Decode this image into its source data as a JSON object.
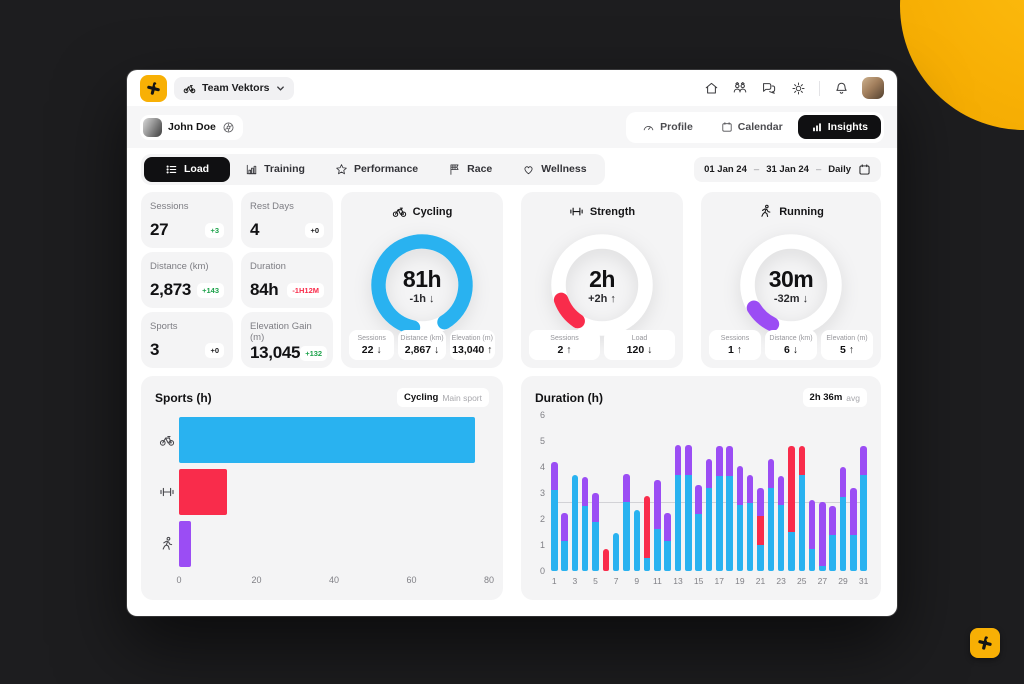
{
  "colors": {
    "accent_yellow": "#f8b005",
    "cycling_blue": "#29b2f0",
    "strength_red": "#f92c4b",
    "running_purple": "#9b4df4",
    "positive_green": "#1ca24a",
    "negative_red": "#f92c4b",
    "neutral_dark": "#1a1a1c"
  },
  "titlebar": {
    "team_selector": {
      "label": "Team Vektors"
    },
    "nav_icons": [
      "home-icon",
      "team-icon",
      "chat-icon",
      "settings-icon",
      "notifications-icon"
    ]
  },
  "profile_row": {
    "athlete_name": "John Doe",
    "tabs": [
      {
        "label": "Profile"
      },
      {
        "label": "Calendar"
      },
      {
        "label": "Insights"
      }
    ],
    "active_tab": "Insights"
  },
  "filter_row": {
    "tabs": [
      {
        "label": "Load"
      },
      {
        "label": "Training"
      },
      {
        "label": "Performance"
      },
      {
        "label": "Race"
      },
      {
        "label": "Wellness"
      }
    ],
    "active_tab": "Load",
    "date_range": {
      "start": "01 Jan 24",
      "sep": "–",
      "end": "31 Jan 24",
      "mode": "Daily"
    }
  },
  "stats": [
    {
      "label": "Sessions",
      "value": "27",
      "delta": "+3",
      "delta_color": "#1ca24a"
    },
    {
      "label": "Rest Days",
      "value": "4",
      "delta": "+0",
      "delta_color": "#1a1a1c"
    },
    {
      "label": "Distance (km)",
      "value": "2,873",
      "delta": "+143",
      "delta_color": "#1ca24a"
    },
    {
      "label": "Duration",
      "value": "84h",
      "delta": "-1H12M",
      "delta_color": "#f92c4b"
    },
    {
      "label": "Sports",
      "value": "3",
      "delta": "+0",
      "delta_color": "#1a1a1c"
    },
    {
      "label": "Elevation Gain (m)",
      "value": "13,045",
      "delta": "+132",
      "delta_color": "#1ca24a"
    }
  ],
  "gauges": [
    {
      "title": "Cycling",
      "value": "81h",
      "delta": "-1h ↓",
      "color": "#29b2f0",
      "arc_pct": 88,
      "arc_rotate": 102,
      "substats": [
        {
          "label": "Sessions",
          "value": "22 ↓"
        },
        {
          "label": "Distance (km)",
          "value": "2,867 ↓"
        },
        {
          "label": "Elevation (m)",
          "value": "13,040 ↑"
        }
      ]
    },
    {
      "title": "Strength",
      "value": "2h",
      "delta": "+2h ↑",
      "color": "#f92c4b",
      "arc_pct": 10,
      "arc_rotate": 124,
      "substats": [
        {
          "label": "Sessions",
          "value": "2 ↑"
        },
        {
          "label": "Load",
          "value": "120 ↓"
        }
      ]
    },
    {
      "title": "Running",
      "value": "30m",
      "delta": "-32m ↓",
      "color": "#9b4df4",
      "arc_pct": 9,
      "arc_rotate": 116,
      "substats": [
        {
          "label": "Sessions",
          "value": "1 ↑"
        },
        {
          "label": "Distance (km)",
          "value": "6 ↓"
        },
        {
          "label": "Elevation (m)",
          "value": "5 ↑"
        }
      ]
    }
  ],
  "chart_data": [
    {
      "type": "bar",
      "orientation": "horizontal",
      "title": "Sports (h)",
      "badge": {
        "label": "Cycling",
        "sub": "Main sport"
      },
      "categories": [
        "Cycling",
        "Strength",
        "Running"
      ],
      "values": [
        76.5,
        12.5,
        3.2
      ],
      "colors": [
        "#29b2f0",
        "#f92c4b",
        "#9b4df4"
      ],
      "xlim": [
        0,
        80
      ],
      "xticks": [
        0,
        20,
        40,
        60,
        80
      ],
      "grid": false
    },
    {
      "type": "bar",
      "stacked": true,
      "title": "Duration (h)",
      "badge": {
        "label": "2h 36m",
        "sub": "avg"
      },
      "x": [
        1,
        2,
        3,
        4,
        5,
        6,
        7,
        8,
        9,
        10,
        11,
        12,
        13,
        14,
        15,
        16,
        17,
        18,
        19,
        20,
        21,
        22,
        23,
        24,
        25,
        26,
        27,
        28,
        29,
        30,
        31
      ],
      "xticks": [
        1,
        3,
        5,
        7,
        9,
        11,
        13,
        15,
        17,
        19,
        21,
        23,
        25,
        27,
        29,
        31
      ],
      "series": [
        {
          "name": "Cycling",
          "color": "#29b2f0",
          "values": [
            3.1,
            1.15,
            3.7,
            2.5,
            1.9,
            0,
            1.45,
            2.65,
            2.35,
            0.5,
            1.6,
            1.15,
            3.7,
            3.7,
            2.2,
            3.2,
            3.65,
            3.65,
            2.55,
            2.6,
            1.0,
            3.2,
            2.55,
            1.5,
            3.7,
            0.85,
            0.2,
            1.4,
            2.85,
            1.4,
            3.7
          ]
        },
        {
          "name": "Strength",
          "color": "#f92c4b",
          "values": [
            0,
            0,
            0,
            0,
            0,
            0.85,
            0,
            0,
            0,
            2.4,
            0,
            0,
            0,
            0,
            0,
            0,
            0,
            0,
            0,
            0,
            1.1,
            0,
            0,
            3.3,
            1.1,
            0,
            0,
            0,
            0,
            0,
            0
          ]
        },
        {
          "name": "Running",
          "color": "#9b4df4",
          "values": [
            1.1,
            1.1,
            0,
            1.1,
            1.1,
            0,
            0,
            1.1,
            0,
            0,
            1.9,
            1.1,
            1.15,
            1.15,
            1.1,
            1.1,
            1.15,
            1.15,
            1.5,
            1.1,
            1.1,
            1.1,
            1.1,
            0,
            0,
            1.9,
            2.45,
            1.1,
            1.15,
            1.8,
            1.1
          ]
        }
      ],
      "ylim": [
        0,
        6
      ],
      "yticks": [
        0,
        1,
        2,
        3,
        4,
        5,
        6
      ],
      "avg_line": 2.6,
      "legend": "none"
    }
  ]
}
